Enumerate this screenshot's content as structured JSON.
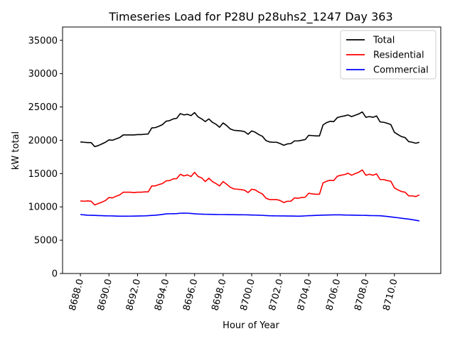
{
  "chart_data": {
    "type": "line",
    "title": "Timeseries Load for P28U p28uhs2_1247  Day 363",
    "xlabel": "Hour of Year",
    "ylabel": "kW total",
    "xlim": [
      8686.75,
      8713.25
    ],
    "ylim": [
      0,
      37000
    ],
    "xticks": [
      8688,
      8690,
      8692,
      8694,
      8696,
      8698,
      8700,
      8702,
      8704,
      8706,
      8708,
      8710
    ],
    "xtick_labels": [
      "8688.0",
      "8690.0",
      "8692.0",
      "8694.0",
      "8696.0",
      "8698.0",
      "8700.0",
      "8702.0",
      "8704.0",
      "8706.0",
      "8708.0",
      "8710.0"
    ],
    "yticks": [
      0,
      5000,
      10000,
      15000,
      20000,
      25000,
      30000,
      35000
    ],
    "ytick_labels": [
      "0",
      "5000",
      "10000",
      "15000",
      "20000",
      "25000",
      "30000",
      "35000"
    ],
    "legend_position": "top-right",
    "x": [
      8688,
      8688.25,
      8688.5,
      8688.75,
      8689,
      8689.25,
      8689.5,
      8689.75,
      8690,
      8690.25,
      8690.5,
      8690.75,
      8691,
      8691.25,
      8691.5,
      8691.75,
      8692,
      8692.25,
      8692.5,
      8692.75,
      8693,
      8693.25,
      8693.5,
      8693.75,
      8694,
      8694.25,
      8694.5,
      8694.75,
      8695,
      8695.25,
      8695.5,
      8695.75,
      8696,
      8696.25,
      8696.5,
      8696.75,
      8697,
      8697.25,
      8697.5,
      8697.75,
      8698,
      8698.25,
      8698.5,
      8698.75,
      8699,
      8699.25,
      8699.5,
      8699.75,
      8700,
      8700.25,
      8700.5,
      8700.75,
      8701,
      8701.25,
      8701.5,
      8701.75,
      8702,
      8702.25,
      8702.5,
      8702.75,
      8703,
      8703.25,
      8703.5,
      8703.75,
      8704,
      8704.25,
      8704.5,
      8704.75,
      8705,
      8705.25,
      8705.5,
      8705.75,
      8706,
      8706.25,
      8706.5,
      8706.75,
      8707,
      8707.25,
      8707.5,
      8707.75,
      8708,
      8708.25,
      8708.5,
      8708.75,
      8709,
      8709.25,
      8709.5,
      8709.75,
      8710,
      8710.25,
      8710.5,
      8710.75,
      8711,
      8711.25,
      8711.5,
      8711.75
    ],
    "series": [
      {
        "name": "Total",
        "color": "#000000",
        "values": [
          19750,
          19700,
          19650,
          19650,
          19050,
          19200,
          19450,
          19700,
          20050,
          20000,
          20200,
          20400,
          20800,
          20800,
          20800,
          20800,
          20850,
          20850,
          20900,
          20950,
          21850,
          21900,
          22100,
          22350,
          22850,
          22950,
          23200,
          23300,
          24000,
          23800,
          23900,
          23700,
          24150,
          23500,
          23200,
          22800,
          23200,
          22700,
          22400,
          21950,
          22600,
          22200,
          21700,
          21500,
          21450,
          21400,
          21300,
          20900,
          21400,
          21200,
          20850,
          20600,
          19950,
          19750,
          19700,
          19700,
          19500,
          19250,
          19450,
          19500,
          19900,
          19900,
          20000,
          20100,
          20750,
          20700,
          20650,
          20650,
          22300,
          22650,
          22850,
          22800,
          23400,
          23550,
          23650,
          23800,
          23550,
          23750,
          23950,
          24250,
          23450,
          23550,
          23450,
          23650,
          22750,
          22700,
          22550,
          22350,
          21200,
          20850,
          20550,
          20400,
          19800,
          19700,
          19550,
          19700
        ]
      },
      {
        "name": "Residential",
        "color": "#ff0000",
        "values": [
          10900,
          10850,
          10900,
          10850,
          10300,
          10500,
          10700,
          10950,
          11400,
          11350,
          11600,
          11800,
          12200,
          12200,
          12200,
          12150,
          12200,
          12200,
          12250,
          12250,
          13150,
          13150,
          13350,
          13500,
          13900,
          13950,
          14200,
          14250,
          14900,
          14650,
          14800,
          14550,
          15200,
          14550,
          14350,
          13800,
          14300,
          13800,
          13500,
          13150,
          13800,
          13400,
          12950,
          12700,
          12650,
          12600,
          12500,
          12150,
          12650,
          12550,
          12200,
          11950,
          11300,
          11100,
          11100,
          11100,
          10950,
          10650,
          10850,
          10850,
          11350,
          11300,
          11400,
          11450,
          12050,
          11950,
          11900,
          11900,
          13600,
          13850,
          14000,
          13950,
          14600,
          14750,
          14850,
          15050,
          14750,
          15000,
          15200,
          15550,
          14750,
          14900,
          14750,
          14950,
          14100,
          14100,
          13950,
          13850,
          12850,
          12550,
          12300,
          12200,
          11650,
          11650,
          11550,
          11800
        ]
      },
      {
        "name": "Commercial",
        "color": "#0000ff",
        "values": [
          8850,
          8800,
          8750,
          8740,
          8720,
          8700,
          8680,
          8660,
          8650,
          8640,
          8620,
          8600,
          8600,
          8600,
          8610,
          8620,
          8630,
          8640,
          8650,
          8680,
          8720,
          8750,
          8800,
          8870,
          8950,
          8970,
          8980,
          8990,
          9050,
          9060,
          9050,
          9020,
          8960,
          8930,
          8910,
          8890,
          8880,
          8870,
          8860,
          8850,
          8850,
          8840,
          8830,
          8830,
          8820,
          8820,
          8810,
          8800,
          8780,
          8770,
          8750,
          8730,
          8700,
          8670,
          8660,
          8650,
          8640,
          8640,
          8630,
          8630,
          8620,
          8600,
          8620,
          8650,
          8680,
          8700,
          8720,
          8740,
          8760,
          8780,
          8790,
          8800,
          8810,
          8800,
          8780,
          8770,
          8760,
          8750,
          8740,
          8730,
          8720,
          8700,
          8690,
          8680,
          8670,
          8620,
          8560,
          8500,
          8430,
          8370,
          8300,
          8230,
          8160,
          8080,
          7990,
          7900
        ]
      }
    ]
  }
}
